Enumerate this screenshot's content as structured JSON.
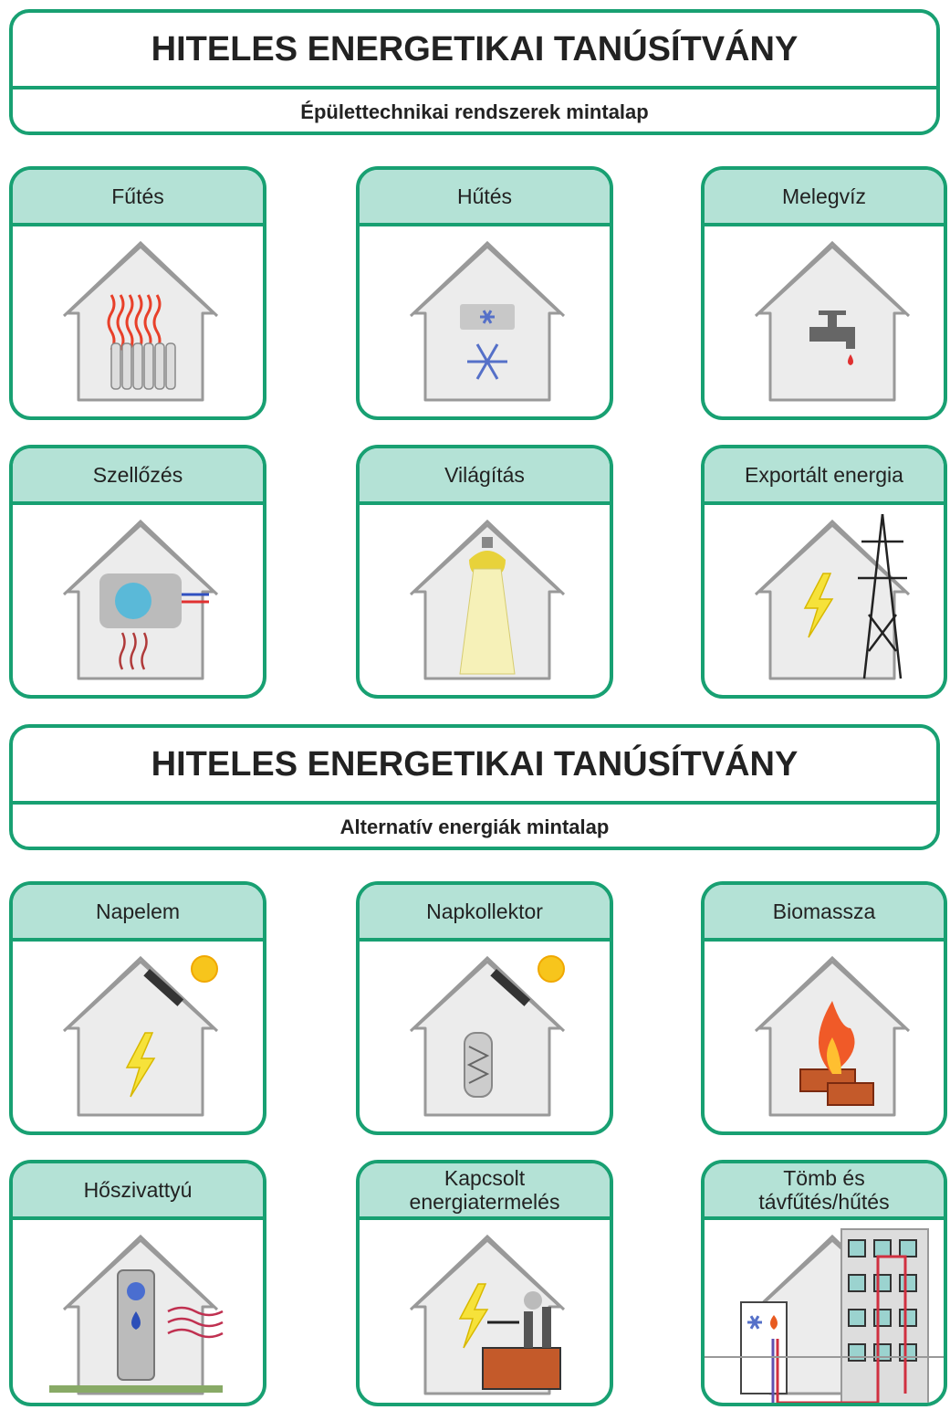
{
  "sections": [
    {
      "title": "HITELES ENERGETIKAI TANÚSÍTVÁNY",
      "subtitle": "Épülettechnikai rendszerek mintalap",
      "cards": [
        {
          "label": [
            "Fűtés"
          ]
        },
        {
          "label": [
            "Hűtés"
          ]
        },
        {
          "label": [
            "Melegvíz"
          ]
        },
        {
          "label": [
            "Szellőzés"
          ]
        },
        {
          "label": [
            "Világítás"
          ]
        },
        {
          "label": [
            "Exportált energia"
          ]
        }
      ]
    },
    {
      "title": "HITELES ENERGETIKAI TANÚSÍTVÁNY",
      "subtitle": "Alternatív energiák mintalap",
      "cards": [
        {
          "label": [
            "Napelem"
          ]
        },
        {
          "label": [
            "Napkollektor"
          ]
        },
        {
          "label": [
            "Biomassza"
          ]
        },
        {
          "label": [
            "Hőszivattyú"
          ]
        },
        {
          "label": [
            "Kapcsolt",
            "energiatermelés"
          ]
        },
        {
          "label": [
            "Tömb és",
            "távfűtés/hűtés"
          ]
        }
      ]
    }
  ]
}
